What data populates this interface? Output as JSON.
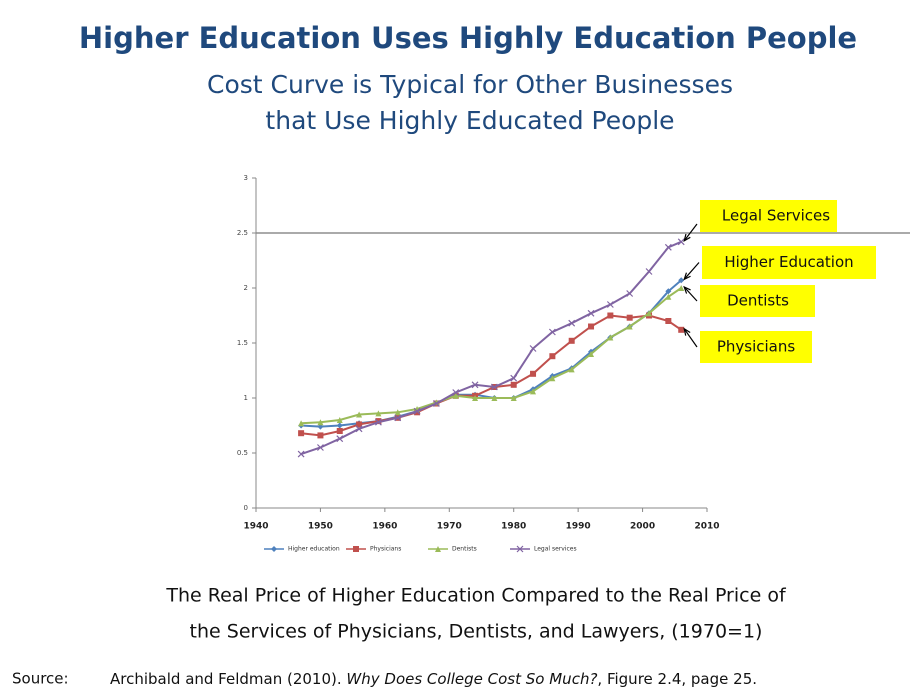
{
  "title": "Higher Education Uses Highly Education People",
  "subtitle": [
    "Cost Curve is Typical for Other Businesses",
    "that Use Highly Educated People"
  ],
  "caption": [
    "The Real Price of Higher Education Compared to the Real Price of",
    "the Services of Physicians, Dentists, and Lawyers, (1970=1)"
  ],
  "source": {
    "label": "Source:",
    "text": "Archibald and Feldman (2010). ",
    "italic": "Why Does College Cost So Much?",
    "rest": ", Figure 2.4, page 25."
  },
  "chart_data": {
    "type": "line",
    "x": [
      1947,
      1950,
      1953,
      1956,
      1959,
      1962,
      1965,
      1968,
      1971,
      1974,
      1977,
      1980,
      1983,
      1986,
      1989,
      1992,
      1995,
      1998,
      2001,
      2004,
      2006
    ],
    "series": [
      {
        "name": "Higher education",
        "color": "#4f81bd",
        "marker": "diamond",
        "values": [
          0.75,
          0.74,
          0.75,
          0.77,
          0.79,
          0.83,
          0.88,
          0.95,
          1.03,
          1.03,
          1.0,
          1.0,
          1.08,
          1.2,
          1.27,
          1.42,
          1.55,
          1.65,
          1.77,
          1.97,
          2.07
        ]
      },
      {
        "name": "Physicians",
        "color": "#c0504d",
        "marker": "square",
        "values": [
          0.68,
          0.66,
          0.7,
          0.76,
          0.79,
          0.82,
          0.87,
          0.95,
          1.02,
          1.02,
          1.1,
          1.12,
          1.22,
          1.38,
          1.52,
          1.65,
          1.75,
          1.73,
          1.75,
          1.7,
          1.62
        ]
      },
      {
        "name": "Dentists",
        "color": "#9bbb59",
        "marker": "triangle",
        "values": [
          0.77,
          0.78,
          0.8,
          0.85,
          0.86,
          0.87,
          0.9,
          0.96,
          1.02,
          1.0,
          1.0,
          1.0,
          1.06,
          1.18,
          1.26,
          1.4,
          1.55,
          1.65,
          1.77,
          1.92,
          2.0
        ]
      },
      {
        "name": "Legal services",
        "color": "#8064a2",
        "marker": "x",
        "values": [
          0.49,
          0.55,
          0.63,
          0.72,
          0.78,
          0.82,
          0.88,
          0.95,
          1.05,
          1.12,
          1.1,
          1.18,
          1.45,
          1.6,
          1.68,
          1.77,
          1.85,
          1.95,
          2.15,
          2.37,
          2.42
        ]
      }
    ],
    "xlim": [
      1940,
      2010
    ],
    "xticks": [
      1940,
      1950,
      1960,
      1970,
      1980,
      1990,
      2000,
      2010
    ],
    "ylim": [
      0,
      3
    ],
    "yticks": [
      0,
      0.5,
      1,
      1.5,
      2,
      2.5,
      3
    ],
    "legend": "bottom",
    "annotations": [
      "Legal Services",
      "Higher Education",
      "Dentists",
      "Physicians"
    ],
    "annotation_color": "#ffff00"
  }
}
